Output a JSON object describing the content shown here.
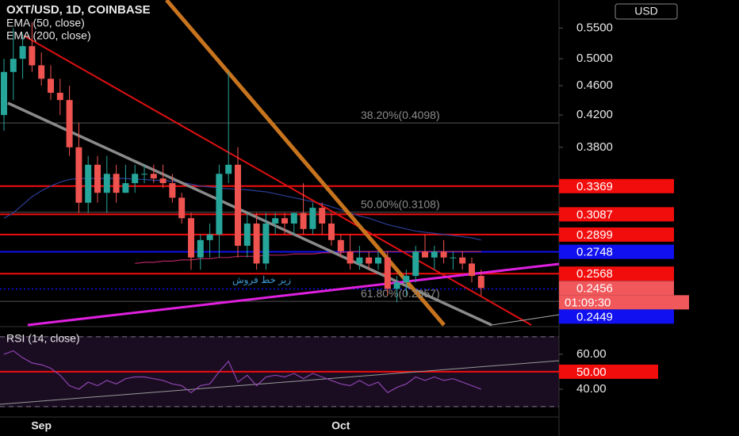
{
  "chart_data": [
    {
      "type": "candlestick",
      "title": "OXT/USD, 1D, COINBASE",
      "currency": "USD",
      "log_scale": true,
      "categories": [
        null,
        null,
        null,
        null,
        "Sep",
        null,
        null,
        null,
        null,
        null,
        null,
        null,
        null,
        null,
        null,
        null,
        null,
        null,
        null,
        null,
        null,
        null,
        null,
        null,
        null,
        null,
        null,
        null,
        null,
        null,
        null,
        null,
        null,
        null,
        null,
        null,
        "Oct",
        null,
        null,
        null,
        null,
        null,
        null,
        null,
        null,
        null,
        null,
        null,
        null,
        null,
        null,
        null
      ],
      "open": [
        0.42,
        0.48,
        0.5,
        0.52,
        0.49,
        0.47,
        0.45,
        0.44,
        0.38,
        0.32,
        0.36,
        0.33,
        0.35,
        0.33,
        0.34,
        0.35,
        0.35,
        0.345,
        0.34,
        0.325,
        0.305,
        0.27,
        0.285,
        0.29,
        0.35,
        0.36,
        0.28,
        0.3,
        0.265,
        0.3,
        0.305,
        0.3,
        0.31,
        0.295,
        0.315,
        0.3,
        0.285,
        0.275,
        0.265,
        0.27,
        0.265,
        0.27,
        0.245,
        0.25,
        0.255,
        0.275,
        0.27,
        0.275,
        0.27,
        0.27,
        0.265,
        0.255
      ],
      "high": [
        0.5,
        0.55,
        0.54,
        0.56,
        0.51,
        0.49,
        0.47,
        0.46,
        0.41,
        0.37,
        0.37,
        0.37,
        0.36,
        0.36,
        0.36,
        0.36,
        0.36,
        0.36,
        0.35,
        0.33,
        0.31,
        0.29,
        0.3,
        0.36,
        0.48,
        0.38,
        0.31,
        0.31,
        0.31,
        0.31,
        0.31,
        0.31,
        0.34,
        0.32,
        0.32,
        0.31,
        0.29,
        0.29,
        0.28,
        0.275,
        0.275,
        0.275,
        0.255,
        0.26,
        0.28,
        0.29,
        0.28,
        0.285,
        0.275,
        0.275,
        0.27,
        0.26
      ],
      "low": [
        0.4,
        0.44,
        0.47,
        0.48,
        0.46,
        0.44,
        0.42,
        0.37,
        0.31,
        0.31,
        0.32,
        0.31,
        0.32,
        0.33,
        0.33,
        0.34,
        0.34,
        0.335,
        0.32,
        0.3,
        0.26,
        0.26,
        0.27,
        0.27,
        0.34,
        0.27,
        0.27,
        0.26,
        0.26,
        0.29,
        0.29,
        0.29,
        0.29,
        0.29,
        0.29,
        0.28,
        0.27,
        0.26,
        0.26,
        0.26,
        0.26,
        0.24,
        0.235,
        0.24,
        0.25,
        0.27,
        0.26,
        0.265,
        0.26,
        0.26,
        0.25,
        0.24
      ],
      "close": [
        0.48,
        0.5,
        0.52,
        0.49,
        0.47,
        0.45,
        0.44,
        0.38,
        0.32,
        0.36,
        0.33,
        0.35,
        0.33,
        0.34,
        0.35,
        0.35,
        0.345,
        0.34,
        0.325,
        0.305,
        0.27,
        0.285,
        0.29,
        0.35,
        0.36,
        0.28,
        0.3,
        0.265,
        0.3,
        0.305,
        0.3,
        0.31,
        0.295,
        0.315,
        0.3,
        0.285,
        0.275,
        0.265,
        0.27,
        0.265,
        0.27,
        0.245,
        0.25,
        0.255,
        0.275,
        0.27,
        0.275,
        0.27,
        0.27,
        0.265,
        0.255,
        0.2456
      ],
      "up_color": "#26a69a",
      "down_color": "#ef5350",
      "series": [
        {
          "name": "EMA (50, close)",
          "color": "#2c3e99",
          "values": [
            0.305,
            0.31,
            0.318,
            0.326,
            0.332,
            0.337,
            0.341,
            0.344,
            0.345,
            0.345,
            0.345,
            0.345,
            0.345,
            0.345,
            0.344,
            0.344,
            0.343,
            0.343,
            0.342,
            0.341,
            0.339,
            0.337,
            0.336,
            0.335,
            0.334,
            0.334,
            0.333,
            0.332,
            0.331,
            0.329,
            0.327,
            0.325,
            0.323,
            0.321,
            0.319,
            0.316,
            0.313,
            0.31,
            0.307,
            0.305,
            0.302,
            0.299,
            0.297,
            0.295,
            0.293,
            0.292,
            0.291,
            0.29,
            0.289,
            0.288,
            0.287,
            0.285
          ]
        },
        {
          "name": "EMA (200, close)",
          "color": "#b0245e",
          "values": [
            null,
            null,
            null,
            null,
            null,
            null,
            null,
            null,
            null,
            null,
            null,
            null,
            null,
            null,
            0.265,
            0.266,
            0.266,
            0.267,
            0.267,
            0.268,
            0.268,
            0.269,
            0.269,
            0.27,
            0.27,
            0.271,
            0.271,
            0.271,
            0.272,
            0.272,
            0.272,
            0.273,
            0.273,
            0.273,
            0.274,
            0.274,
            0.274,
            0.275,
            0.275,
            0.275,
            0.275,
            0.275,
            0.275,
            0.275,
            0.275,
            0.275,
            0.275,
            0.275,
            0.275,
            0.275,
            0.275,
            0.275
          ]
        }
      ],
      "ylim": [
        0.219,
        0.6
      ],
      "yticks": [
        {
          "value": 0.55,
          "label": "0.5500"
        },
        {
          "value": 0.5,
          "label": "0.5000"
        },
        {
          "value": 0.46,
          "label": "0.4600"
        },
        {
          "value": 0.42,
          "label": "0.4200"
        },
        {
          "value": 0.38,
          "label": "0.3800"
        }
      ],
      "levels": [
        {
          "value": 0.3369,
          "color": "#f20d0d",
          "style": "solid"
        },
        {
          "value": 0.3087,
          "color": "#f20d0d",
          "style": "solid"
        },
        {
          "value": 0.2899,
          "color": "#f20d0d",
          "style": "solid"
        },
        {
          "value": 0.2748,
          "color": "#1010f0",
          "style": "solid"
        },
        {
          "value": 0.2568,
          "color": "#f20d0d",
          "style": "solid"
        },
        {
          "value": 0.2456,
          "color": "#f0585c",
          "style": "none",
          "countdown": "01:09:30"
        },
        {
          "value": 0.2449,
          "color": "#1010f0",
          "style": "dotted"
        }
      ],
      "fib": [
        {
          "value": 0.4098,
          "label": "38.20%(0.4098)"
        },
        {
          "value": 0.3108,
          "label": "50.00%(0.3108)"
        },
        {
          "value": 0.2357,
          "label": "61.80%(0.2357)"
        }
      ],
      "annotation": "زیر خط فروش"
    },
    {
      "type": "line",
      "title": "RSI (14, close)",
      "series": [
        {
          "color": "#8e44ad",
          "values": [
            60,
            62,
            58,
            55,
            54,
            52,
            48,
            42,
            40,
            44,
            42,
            45,
            43,
            46,
            47,
            47,
            46,
            45,
            43,
            42,
            38,
            42,
            43,
            50,
            56,
            44,
            48,
            42,
            47,
            48,
            47,
            49,
            46,
            49,
            47,
            45,
            43,
            42,
            45,
            42,
            44,
            38,
            41,
            43,
            47,
            45,
            47,
            45,
            46,
            44,
            42,
            40
          ]
        }
      ],
      "ylim": [
        24.5,
        74.5
      ],
      "yticks": [
        {
          "value": 60,
          "label": "60.00"
        },
        {
          "value": 40,
          "label": "40.00"
        }
      ],
      "level": {
        "value": 50,
        "label": "50.00",
        "color": "#f20d0d"
      },
      "bands": [
        30,
        70
      ]
    }
  ]
}
